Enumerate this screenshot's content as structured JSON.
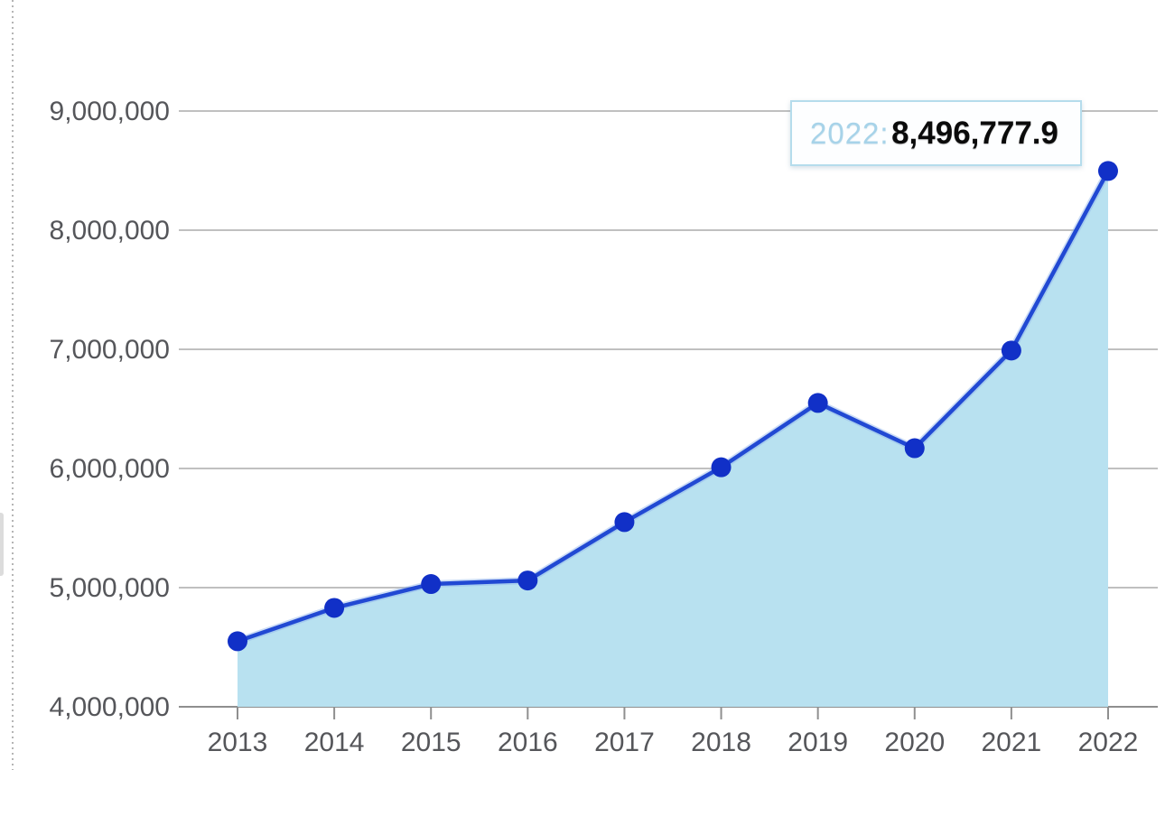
{
  "colors": {
    "line": "#2149d3",
    "line_halo": "#8db3ea",
    "marker": "#1130c7",
    "area_fill": "#b8e1f0",
    "gridline": "#c0c0c0",
    "axis_line": "#8f8f8f",
    "tick": "#8f8f8f",
    "axis_label_text": "#55565a",
    "tooltip_border": "#b5dcec",
    "tooltip_year_text": "#a7d3e9",
    "tooltip_value_text": "#0b0b0b"
  },
  "chart_data": {
    "type": "area",
    "title": "",
    "xlabel": "",
    "ylabel": "",
    "categories": [
      "2013",
      "2014",
      "2015",
      "2016",
      "2017",
      "2018",
      "2019",
      "2020",
      "2021",
      "2022"
    ],
    "values": [
      4550000,
      4830000,
      5030000,
      5060000,
      5550000,
      6010000,
      6550000,
      6170000,
      6990000,
      8496777.9
    ],
    "series_name": "",
    "ylim": [
      4000000,
      9000000
    ],
    "y_tick_step": 1000000,
    "y_ticks": [
      4000000,
      5000000,
      6000000,
      7000000,
      8000000,
      9000000
    ],
    "y_tick_labels": [
      "4,000,000",
      "5,000,000",
      "6,000,000",
      "7,000,000",
      "8,000,000",
      "9,000,000"
    ],
    "grid": "horizontal",
    "legend_position": "none",
    "markers": true
  },
  "tooltip": {
    "year_label": "2022:",
    "value": "8,496,777.9"
  }
}
